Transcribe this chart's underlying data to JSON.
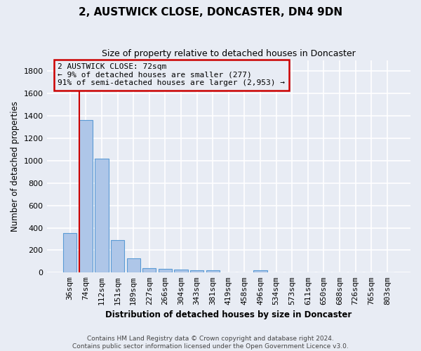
{
  "title": "2, AUSTWICK CLOSE, DONCASTER, DN4 9DN",
  "subtitle": "Size of property relative to detached houses in Doncaster",
  "xlabel": "Distribution of detached houses by size in Doncaster",
  "ylabel": "Number of detached properties",
  "bar_labels": [
    "36sqm",
    "74sqm",
    "112sqm",
    "151sqm",
    "189sqm",
    "227sqm",
    "266sqm",
    "304sqm",
    "343sqm",
    "381sqm",
    "419sqm",
    "458sqm",
    "496sqm",
    "534sqm",
    "573sqm",
    "611sqm",
    "650sqm",
    "688sqm",
    "726sqm",
    "765sqm",
    "803sqm"
  ],
  "bar_values": [
    355,
    1365,
    1020,
    290,
    125,
    42,
    35,
    30,
    22,
    18,
    0,
    0,
    22,
    0,
    0,
    0,
    0,
    0,
    0,
    0,
    0
  ],
  "bar_color": "#aec6e8",
  "bar_edge_color": "#5b9bd5",
  "vline_color": "#cc0000",
  "vline_x_index": 1,
  "annotation_text": "2 AUSTWICK CLOSE: 72sqm\n← 9% of detached houses are smaller (277)\n91% of semi-detached houses are larger (2,953) →",
  "annotation_box_color": "#cc0000",
  "ylim": [
    0,
    1900
  ],
  "yticks": [
    0,
    200,
    400,
    600,
    800,
    1000,
    1200,
    1400,
    1600,
    1800
  ],
  "bg_color": "#e8ecf4",
  "grid_color": "#ffffff",
  "footer": "Contains HM Land Registry data © Crown copyright and database right 2024.\nContains public sector information licensed under the Open Government Licence v3.0."
}
